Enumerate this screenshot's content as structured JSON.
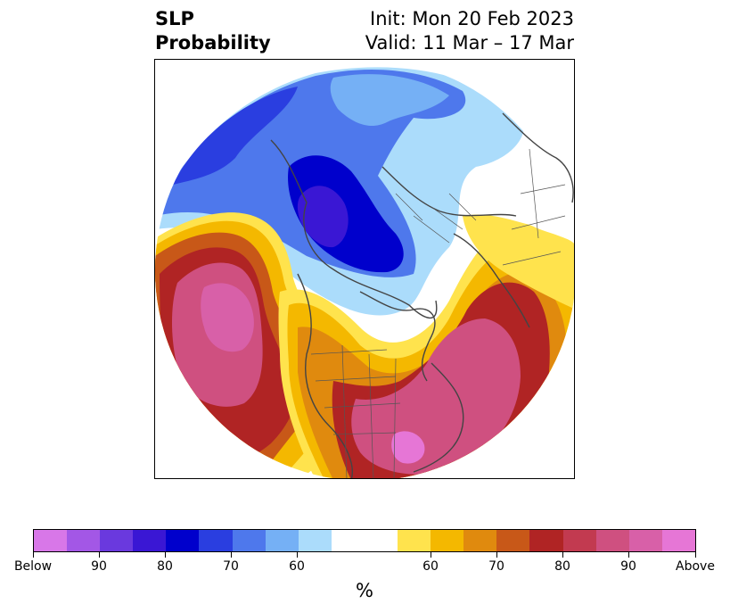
{
  "header": {
    "title_line1": "SLP",
    "title_line2": "Probability",
    "init": "Init: Mon 20 Feb 2023",
    "valid": "Valid: 11 Mar – 17 Mar"
  },
  "colorbar": {
    "colors": [
      "#d877e8",
      "#a357e6",
      "#6a39de",
      "#3a17d4",
      "#0000cc",
      "#2a3ee0",
      "#4e78ec",
      "#75b0f5",
      "#abdcfb",
      "#ffffff",
      "#ffffff",
      "#ffe34d",
      "#f4b800",
      "#e08a0e",
      "#c85818",
      "#b02424",
      "#c23a50",
      "#cf5080",
      "#d860a8",
      "#e676d6"
    ],
    "tick_labels": [
      "Below",
      "90",
      "80",
      "70",
      "60",
      "60",
      "70",
      "80",
      "90",
      "Above"
    ],
    "unit_label": "%"
  },
  "map": {
    "region_names": [
      "below-strong-eurasia",
      "below-lowcenter-arctic",
      "above-pacific",
      "above-atlantic",
      "above-eastasia"
    ]
  }
}
